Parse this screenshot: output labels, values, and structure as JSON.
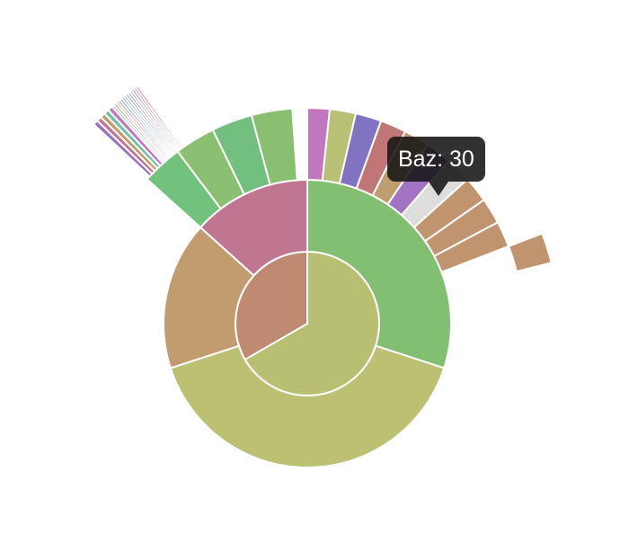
{
  "chart_data": {
    "type": "sunburst",
    "center": {
      "name": "",
      "color": "#c08a72"
    },
    "rings": [
      [
        {
          "name": "",
          "value": 240,
          "start": 0,
          "color": "#b8be72"
        }
      ],
      [
        {
          "name": "",
          "value": 108,
          "start": 0,
          "color": "#82bf72"
        },
        {
          "name": "",
          "value": 144,
          "start": 108,
          "color": "#bcc072"
        },
        {
          "name": "",
          "value": 60,
          "start": 252,
          "color": "#c09c6f"
        },
        {
          "name": "",
          "value": 48,
          "start": 312,
          "color": "#c07591"
        }
      ],
      [
        {
          "name": "",
          "value": 6,
          "start": 0,
          "color": "#c077bd"
        },
        {
          "name": "",
          "value": 7,
          "start": 6,
          "color": "#b9bf74"
        },
        {
          "name": "",
          "value": 7,
          "start": 13,
          "color": "#8273c2"
        },
        {
          "name": "",
          "value": 7,
          "start": 20,
          "color": "#c07677"
        },
        {
          "name": "",
          "value": 7,
          "start": 27,
          "color": "#c09d6f"
        },
        {
          "name": "",
          "value": 7,
          "start": 34,
          "color": "#a273c2"
        },
        {
          "name": "Baz",
          "value": 7,
          "start": 41,
          "color": "#dddddd",
          "highlighted": true
        },
        {
          "name": "",
          "value": 7,
          "start": 48,
          "color": "#c0946e"
        },
        {
          "name": "",
          "value": 7,
          "start": 55,
          "color": "#c0946e"
        },
        {
          "name": "",
          "value": 7,
          "start": 62,
          "color": "#c0946e"
        },
        {
          "name": "",
          "value": 11,
          "start": 312,
          "color": "#72c17c"
        },
        {
          "name": "",
          "value": 11,
          "start": 323,
          "color": "#8bc072"
        },
        {
          "name": "",
          "value": 11,
          "start": 334,
          "color": "#72bf7f"
        },
        {
          "name": "",
          "value": 11,
          "start": 345,
          "color": "#8abf72"
        }
      ],
      [
        {
          "name": "",
          "value": 1,
          "start": 313,
          "color": "#9672c0"
        },
        {
          "name": "",
          "value": 1,
          "start": 314,
          "color": "#c07592"
        },
        {
          "name": "",
          "value": 1,
          "start": 315,
          "color": "#c09d6f"
        },
        {
          "name": "",
          "value": 1,
          "start": 316,
          "color": "#72c0a8"
        },
        {
          "name": "",
          "value": 1,
          "start": 317,
          "color": "#c078c0"
        },
        {
          "name": "",
          "value": 0.5,
          "start": 318,
          "color": "#72c0a0"
        },
        {
          "name": "",
          "value": 0.5,
          "start": 318.5,
          "color": "#c07590"
        },
        {
          "name": "",
          "value": 0.5,
          "start": 319,
          "color": "#b8bf72"
        },
        {
          "name": "",
          "value": 0.5,
          "start": 319.5,
          "color": "#9a73c0"
        },
        {
          "name": "",
          "value": 0.5,
          "start": 320,
          "color": "#8273c0"
        },
        {
          "name": "",
          "value": 0.5,
          "start": 320.5,
          "color": "#72b8c0"
        },
        {
          "name": "",
          "value": 0.5,
          "start": 321,
          "color": "#73c090"
        },
        {
          "name": "",
          "value": 0.5,
          "start": 321.5,
          "color": "#7888c0"
        },
        {
          "name": "",
          "value": 0.5,
          "start": 322,
          "color": "#c07590"
        },
        {
          "name": "",
          "value": 0.5,
          "start": 322.5,
          "color": "#78b8c0"
        },
        {
          "name": "",
          "value": 0.5,
          "start": 323,
          "color": "#c07878"
        },
        {
          "name": "",
          "value": 0.5,
          "start": 323.5,
          "color": "#c078b0"
        },
        {
          "name": "",
          "value": 0.5,
          "start": 324,
          "color": "#c07590"
        },
        {
          "name": "",
          "value": 7,
          "start": 69,
          "color": "#c0946e"
        }
      ]
    ],
    "tooltip": {
      "text": "Baz: 30"
    }
  }
}
